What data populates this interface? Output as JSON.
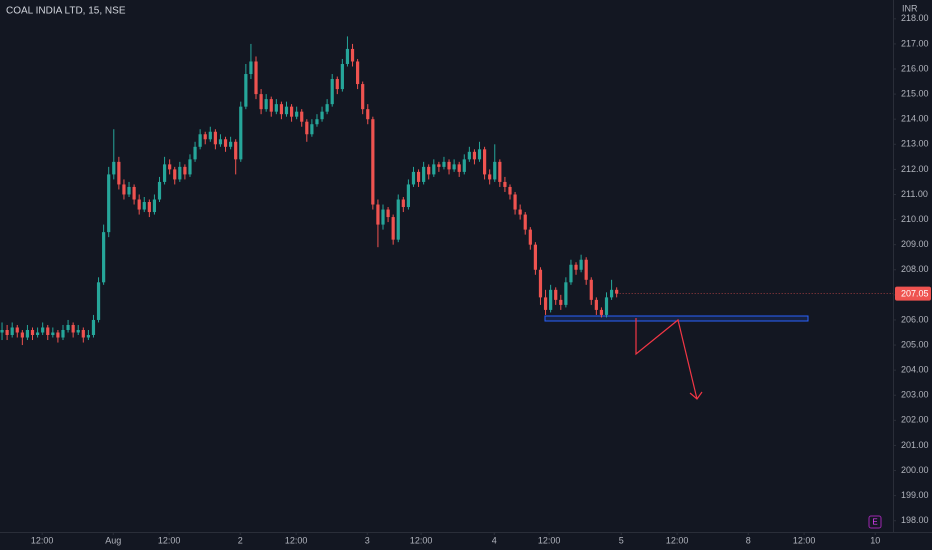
{
  "chart_data": {
    "type": "candlestick",
    "title": "COAL INDIA LTD, 15, NSE",
    "currency": "INR",
    "event_badge": "E",
    "up_color": "#26a69a",
    "down_color": "#ef5350",
    "grid": false,
    "ylim": [
      197.55,
      218.75
    ],
    "yticks": [
      {
        "value": 198,
        "label": "198.00"
      },
      {
        "value": 199,
        "label": "199.00"
      },
      {
        "value": 200,
        "label": "200.00"
      },
      {
        "value": 201,
        "label": "201.00"
      },
      {
        "value": 202,
        "label": "202.00"
      },
      {
        "value": 203,
        "label": "203.00"
      },
      {
        "value": 204,
        "label": "204.00"
      },
      {
        "value": 205,
        "label": "205.00"
      },
      {
        "value": 206,
        "label": "206.00"
      },
      {
        "value": 207,
        "label": "207.00"
      },
      {
        "value": 208,
        "label": "208.00"
      },
      {
        "value": 209,
        "label": "209.00"
      },
      {
        "value": 210,
        "label": "210.00"
      },
      {
        "value": 211,
        "label": "211.00"
      },
      {
        "value": 212,
        "label": "212.00"
      },
      {
        "value": 213,
        "label": "213.00"
      },
      {
        "value": 214,
        "label": "214.00"
      },
      {
        "value": 215,
        "label": "215.00"
      },
      {
        "value": 216,
        "label": "216.00"
      },
      {
        "value": 217,
        "label": "217.00"
      },
      {
        "value": 218,
        "label": "218.00"
      }
    ],
    "xlim": [
      -0.4,
      175.4
    ],
    "xticks": [
      {
        "value": 7.9,
        "label": "12:00"
      },
      {
        "value": 21.9,
        "label": "Aug"
      },
      {
        "value": 32.9,
        "label": "12:00"
      },
      {
        "value": 46.9,
        "label": "2"
      },
      {
        "value": 57.9,
        "label": "12:00"
      },
      {
        "value": 71.9,
        "label": "3"
      },
      {
        "value": 82.5,
        "label": "12:00"
      },
      {
        "value": 96.9,
        "label": "4"
      },
      {
        "value": 107.7,
        "label": "12:00"
      },
      {
        "value": 121.9,
        "label": "5"
      },
      {
        "value": 132.9,
        "label": "12:00"
      },
      {
        "value": 146.9,
        "label": "8"
      },
      {
        "value": 157.9,
        "label": "12:00"
      },
      {
        "value": 171.9,
        "label": "10"
      }
    ],
    "ohlc": [
      [
        205.5,
        205.9,
        205.2,
        205.6
      ],
      [
        205.6,
        205.8,
        205.2,
        205.4
      ],
      [
        205.4,
        205.9,
        205.3,
        205.7
      ],
      [
        205.7,
        205.8,
        205.3,
        205.5
      ],
      [
        205.5,
        205.6,
        205.0,
        205.3
      ],
      [
        205.3,
        205.8,
        205.2,
        205.6
      ],
      [
        205.6,
        205.7,
        205.2,
        205.4
      ],
      [
        205.4,
        205.7,
        205.3,
        205.5
      ],
      [
        205.5,
        205.9,
        205.4,
        205.7
      ],
      [
        205.7,
        205.8,
        205.2,
        205.4
      ],
      [
        205.4,
        205.7,
        205.3,
        205.5
      ],
      [
        205.5,
        205.6,
        205.1,
        205.3
      ],
      [
        205.3,
        205.8,
        205.2,
        205.6
      ],
      [
        205.6,
        206.0,
        205.5,
        205.8
      ],
      [
        205.8,
        205.9,
        205.3,
        205.5
      ],
      [
        205.5,
        205.8,
        205.4,
        205.6
      ],
      [
        205.6,
        205.7,
        205.1,
        205.3
      ],
      [
        205.3,
        205.6,
        205.2,
        205.4
      ],
      [
        205.4,
        206.2,
        205.3,
        206.0
      ],
      [
        206.0,
        207.7,
        205.9,
        207.5
      ],
      [
        207.5,
        209.8,
        207.4,
        209.5
      ],
      [
        209.5,
        212.1,
        209.3,
        211.8
      ],
      [
        211.8,
        213.6,
        211.6,
        212.3
      ],
      [
        212.3,
        212.5,
        211.2,
        211.4
      ],
      [
        211.4,
        211.6,
        210.8,
        211.0
      ],
      [
        211.0,
        211.5,
        210.9,
        211.3
      ],
      [
        211.3,
        211.4,
        210.6,
        210.8
      ],
      [
        210.8,
        211.0,
        210.2,
        210.4
      ],
      [
        210.4,
        210.9,
        210.3,
        210.7
      ],
      [
        210.7,
        210.8,
        210.1,
        210.3
      ],
      [
        210.3,
        211.0,
        210.2,
        210.8
      ],
      [
        210.8,
        211.7,
        210.7,
        211.5
      ],
      [
        211.5,
        212.5,
        211.4,
        212.2
      ],
      [
        212.2,
        212.4,
        211.8,
        212.0
      ],
      [
        212.0,
        212.1,
        211.4,
        211.6
      ],
      [
        211.6,
        212.3,
        211.5,
        212.1
      ],
      [
        212.1,
        212.2,
        211.6,
        211.8
      ],
      [
        211.8,
        212.6,
        211.7,
        212.4
      ],
      [
        212.4,
        213.1,
        212.3,
        212.9
      ],
      [
        212.9,
        213.6,
        212.8,
        213.4
      ],
      [
        213.4,
        213.5,
        213.0,
        213.2
      ],
      [
        213.2,
        213.7,
        213.1,
        213.5
      ],
      [
        213.5,
        213.6,
        212.8,
        213.0
      ],
      [
        213.0,
        213.4,
        212.9,
        213.2
      ],
      [
        213.2,
        213.3,
        212.7,
        212.9
      ],
      [
        212.9,
        213.3,
        212.8,
        213.1
      ],
      [
        213.1,
        213.2,
        211.8,
        212.4
      ],
      [
        212.4,
        214.7,
        212.3,
        214.5
      ],
      [
        214.5,
        216.2,
        214.4,
        215.8
      ],
      [
        215.8,
        217.0,
        215.6,
        216.3
      ],
      [
        216.3,
        216.5,
        214.8,
        215.0
      ],
      [
        215.0,
        215.2,
        214.2,
        214.4
      ],
      [
        214.4,
        215.0,
        214.3,
        214.8
      ],
      [
        214.8,
        214.9,
        214.1,
        214.3
      ],
      [
        214.3,
        214.8,
        214.2,
        214.6
      ],
      [
        214.6,
        214.7,
        214.0,
        214.2
      ],
      [
        214.2,
        214.7,
        214.1,
        214.5
      ],
      [
        214.5,
        214.6,
        213.9,
        214.1
      ],
      [
        214.1,
        214.5,
        214.0,
        214.3
      ],
      [
        214.3,
        214.4,
        213.7,
        213.9
      ],
      [
        213.9,
        214.0,
        213.1,
        213.4
      ],
      [
        213.4,
        214.0,
        213.3,
        213.8
      ],
      [
        213.8,
        214.2,
        213.7,
        214.0
      ],
      [
        214.0,
        214.5,
        213.9,
        214.3
      ],
      [
        214.3,
        214.8,
        214.2,
        214.6
      ],
      [
        214.6,
        215.8,
        214.5,
        215.6
      ],
      [
        215.6,
        215.7,
        215.0,
        215.2
      ],
      [
        215.2,
        216.4,
        215.1,
        216.2
      ],
      [
        216.2,
        217.3,
        216.1,
        216.8
      ],
      [
        216.8,
        217.0,
        216.1,
        216.3
      ],
      [
        216.3,
        216.4,
        215.2,
        215.4
      ],
      [
        215.4,
        215.5,
        214.2,
        214.4
      ],
      [
        214.4,
        214.6,
        213.8,
        214.0
      ],
      [
        214.0,
        214.1,
        210.4,
        210.6
      ],
      [
        210.6,
        210.8,
        208.9,
        209.8
      ],
      [
        209.8,
        210.6,
        209.6,
        210.4
      ],
      [
        210.4,
        210.5,
        209.9,
        210.1
      ],
      [
        210.1,
        210.2,
        209.0,
        209.2
      ],
      [
        209.2,
        211.0,
        209.1,
        210.8
      ],
      [
        210.8,
        210.9,
        210.3,
        210.5
      ],
      [
        210.5,
        211.6,
        210.4,
        211.4
      ],
      [
        211.4,
        212.1,
        211.3,
        211.9
      ],
      [
        211.9,
        212.0,
        211.3,
        211.5
      ],
      [
        211.5,
        212.3,
        211.4,
        212.1
      ],
      [
        212.1,
        212.2,
        211.6,
        211.8
      ],
      [
        211.8,
        212.4,
        211.7,
        212.2
      ],
      [
        212.2,
        212.3,
        211.9,
        212.1
      ],
      [
        212.1,
        212.5,
        212.0,
        212.3
      ],
      [
        212.3,
        212.4,
        211.8,
        212.0
      ],
      [
        212.0,
        212.4,
        211.9,
        212.2
      ],
      [
        212.2,
        212.3,
        211.7,
        211.9
      ],
      [
        211.9,
        212.6,
        211.8,
        212.4
      ],
      [
        212.4,
        212.9,
        212.3,
        212.7
      ],
      [
        212.7,
        212.8,
        212.2,
        212.4
      ],
      [
        212.4,
        213.1,
        212.3,
        212.8
      ],
      [
        212.8,
        212.9,
        211.6,
        211.8
      ],
      [
        211.8,
        212.0,
        211.4,
        211.6
      ],
      [
        211.6,
        213.0,
        211.5,
        212.3
      ],
      [
        212.3,
        212.4,
        211.3,
        211.5
      ],
      [
        211.5,
        211.7,
        211.1,
        211.3
      ],
      [
        211.3,
        211.4,
        210.8,
        211.0
      ],
      [
        211.0,
        211.1,
        210.2,
        210.4
      ],
      [
        210.4,
        210.6,
        210.0,
        210.2
      ],
      [
        210.2,
        210.3,
        209.4,
        209.6
      ],
      [
        209.6,
        209.7,
        208.8,
        209.0
      ],
      [
        209.0,
        209.1,
        207.8,
        208.0
      ],
      [
        208.0,
        208.1,
        206.6,
        206.9
      ],
      [
        206.9,
        207.2,
        206.2,
        206.4
      ],
      [
        206.4,
        207.4,
        206.3,
        207.2
      ],
      [
        207.2,
        207.3,
        206.6,
        206.8
      ],
      [
        206.8,
        207.0,
        206.4,
        206.6
      ],
      [
        206.6,
        207.7,
        206.5,
        207.5
      ],
      [
        207.5,
        208.4,
        207.4,
        208.2
      ],
      [
        208.2,
        208.3,
        207.8,
        208.0
      ],
      [
        208.0,
        208.6,
        207.9,
        208.4
      ],
      [
        208.4,
        208.5,
        207.4,
        207.6
      ],
      [
        207.6,
        207.7,
        206.6,
        206.8
      ],
      [
        206.8,
        206.9,
        206.2,
        206.4
      ],
      [
        206.4,
        206.5,
        206.1,
        206.2
      ],
      [
        206.2,
        207.1,
        206.1,
        206.9
      ],
      [
        206.9,
        207.6,
        206.8,
        207.2
      ],
      [
        207.2,
        207.3,
        206.9,
        207.05
      ]
    ]
  }
}
